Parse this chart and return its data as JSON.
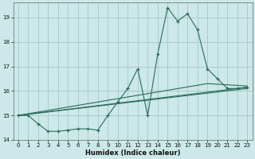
{
  "xlabel": "Humidex (Indice chaleur)",
  "background_color": "#cce8e8",
  "grid_color": "#aacccc",
  "line_color": "#2a6b5a",
  "xlim": [
    -0.5,
    23.5
  ],
  "ylim": [
    14.0,
    19.6
  ],
  "yticks": [
    14,
    15,
    16,
    17,
    18,
    19
  ],
  "xticks": [
    0,
    1,
    2,
    3,
    4,
    5,
    6,
    7,
    8,
    9,
    10,
    11,
    12,
    13,
    14,
    15,
    16,
    17,
    18,
    19,
    20,
    21,
    22,
    23
  ],
  "main_x": [
    0,
    1,
    2,
    3,
    4,
    5,
    6,
    7,
    8,
    9,
    10,
    11,
    12,
    13,
    14,
    15,
    16,
    17,
    18,
    19,
    20,
    21,
    22,
    23
  ],
  "main_y": [
    15.0,
    15.0,
    14.65,
    14.35,
    14.35,
    14.4,
    14.45,
    14.45,
    14.4,
    15.0,
    15.55,
    16.1,
    16.9,
    15.0,
    17.5,
    19.4,
    18.85,
    19.15,
    18.5,
    16.9,
    16.5,
    16.1,
    16.1,
    16.15
  ],
  "line2_x": [
    0,
    23
  ],
  "line2_y": [
    15.0,
    16.1
  ],
  "line3_x": [
    0,
    23
  ],
  "line3_y": [
    15.0,
    16.15
  ],
  "line4_x": [
    0,
    19,
    23
  ],
  "line4_y": [
    15.0,
    16.3,
    16.2
  ]
}
